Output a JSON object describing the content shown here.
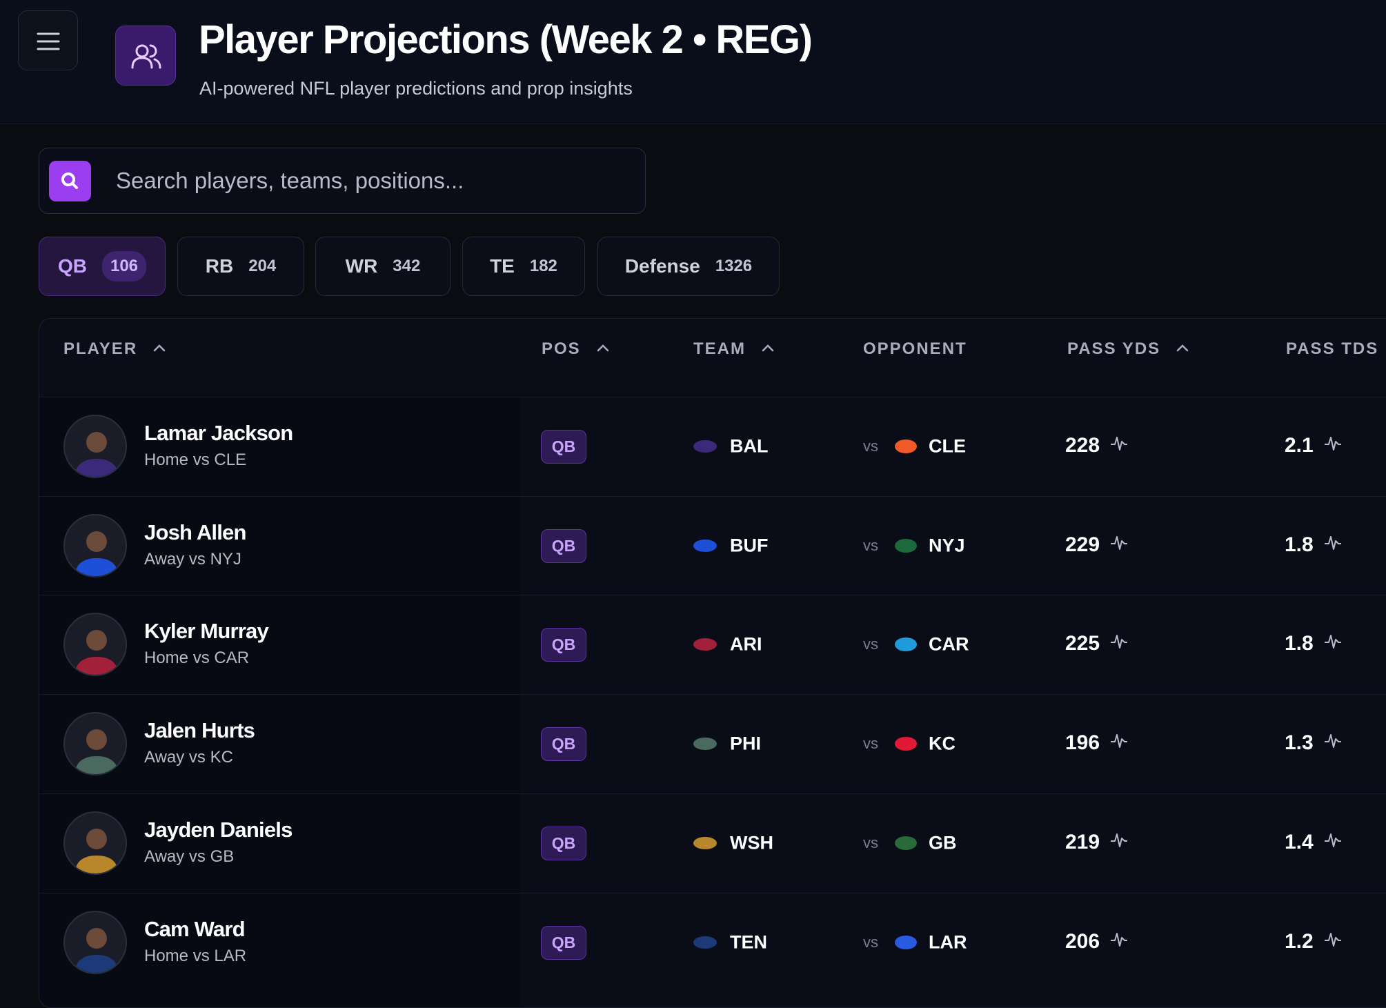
{
  "header": {
    "title": "Player Projections (Week 2 • REG)",
    "subtitle": "AI-powered NFL player predictions and prop insights"
  },
  "search": {
    "placeholder": "Search players, teams, positions..."
  },
  "tabs": [
    {
      "label": "QB",
      "count": "106"
    },
    {
      "label": "RB",
      "count": "204"
    },
    {
      "label": "WR",
      "count": "342"
    },
    {
      "label": "TE",
      "count": "182"
    },
    {
      "label": "Defense",
      "count": "1326"
    }
  ],
  "table": {
    "columns": [
      "PLAYER",
      "POS",
      "TEAM",
      "OPPONENT",
      "PASS YDS",
      "PASS TDS"
    ],
    "rows": [
      {
        "name": "Lamar Jackson",
        "detail": "Home vs CLE",
        "pos": "QB",
        "team": "BAL",
        "vs": "vs",
        "opponent": "CLE",
        "pass_yds": "228",
        "pass_tds": "2.1"
      },
      {
        "name": "Josh Allen",
        "detail": "Away vs NYJ",
        "pos": "QB",
        "team": "BUF",
        "vs": "vs",
        "opponent": "NYJ",
        "pass_yds": "229",
        "pass_tds": "1.8"
      },
      {
        "name": "Kyler Murray",
        "detail": "Home vs CAR",
        "pos": "QB",
        "team": "ARI",
        "vs": "vs",
        "opponent": "CAR",
        "pass_yds": "225",
        "pass_tds": "1.8"
      },
      {
        "name": "Jalen Hurts",
        "detail": "Away vs KC",
        "pos": "QB",
        "team": "PHI",
        "vs": "vs",
        "opponent": "KC",
        "pass_yds": "196",
        "pass_tds": "1.3"
      },
      {
        "name": "Jayden Daniels",
        "detail": "Away vs GB",
        "pos": "QB",
        "team": "WSH",
        "vs": "vs",
        "opponent": "GB",
        "pass_yds": "219",
        "pass_tds": "1.4"
      },
      {
        "name": "Cam Ward",
        "detail": "Home vs LAR",
        "pos": "QB",
        "team": "TEN",
        "vs": "vs",
        "opponent": "LAR",
        "pass_yds": "206",
        "pass_tds": "1.2"
      }
    ]
  }
}
